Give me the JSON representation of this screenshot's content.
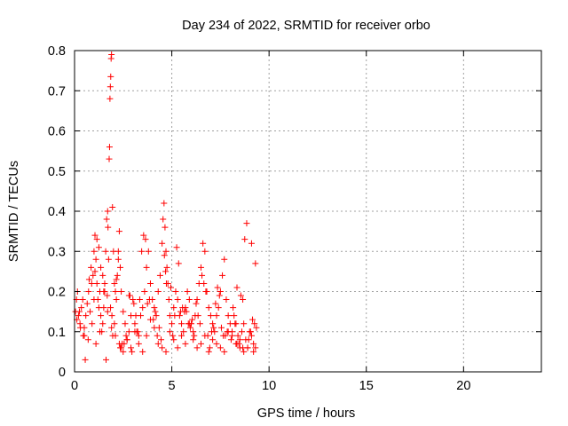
{
  "chart_data": {
    "type": "scatter",
    "title": "Day 234 of 2022, SRMTID for receiver orbo",
    "xlabel": "GPS time / hours",
    "ylabel": "SRMTID / TECUs",
    "xlim": [
      0,
      24
    ],
    "ylim": [
      0,
      0.8
    ],
    "xticks": [
      0,
      5,
      10,
      15,
      20
    ],
    "yticks": [
      0,
      0.1,
      0.2,
      0.3,
      0.4,
      0.5,
      0.6,
      0.7,
      0.8
    ],
    "xtick_labels": [
      "0",
      "5",
      "10",
      "15",
      "20"
    ],
    "ytick_labels": [
      "0",
      "0.1",
      "0.2",
      "0.3",
      "0.4",
      "0.5",
      "0.6",
      "0.7",
      "0.8"
    ],
    "grid": true,
    "marker": "+",
    "point_color": "#ff0000",
    "series": [
      {
        "name": "SRMTID",
        "x": [
          0.05,
          0.12,
          0.2,
          0.28,
          0.35,
          0.42,
          0.5,
          0.58,
          0.65,
          0.72,
          0.8,
          0.88,
          0.95,
          1.0,
          1.05,
          1.1,
          1.15,
          1.2,
          1.25,
          1.3,
          1.35,
          1.4,
          1.45,
          1.5,
          1.55,
          1.6,
          1.65,
          1.7,
          1.72,
          1.75,
          1.78,
          1.8,
          1.82,
          1.84,
          1.86,
          1.88,
          1.9,
          1.95,
          2.0,
          2.05,
          2.1,
          2.15,
          2.2,
          2.25,
          2.3,
          2.35,
          2.4,
          2.5,
          2.6,
          2.7,
          2.8,
          2.9,
          3.0,
          3.1,
          3.2,
          3.3,
          3.4,
          3.5,
          3.6,
          3.7,
          3.8,
          3.9,
          4.0,
          4.1,
          4.2,
          4.3,
          4.4,
          4.5,
          4.55,
          4.6,
          4.65,
          4.7,
          4.75,
          4.8,
          4.85,
          4.9,
          5.0,
          5.1,
          5.2,
          5.3,
          5.4,
          5.5,
          5.6,
          5.7,
          5.8,
          5.9,
          6.0,
          6.1,
          6.2,
          6.3,
          6.4,
          6.5,
          6.6,
          6.7,
          6.8,
          6.9,
          7.0,
          7.1,
          7.2,
          7.3,
          7.4,
          7.5,
          7.6,
          7.7,
          7.8,
          7.9,
          8.0,
          8.1,
          8.2,
          8.3,
          8.4,
          8.5,
          8.6,
          8.7,
          8.8,
          8.9,
          9.0,
          9.1,
          9.2,
          9.3,
          0.1,
          0.3,
          0.5,
          0.7,
          0.9,
          1.1,
          1.3,
          1.5,
          1.7,
          1.9,
          2.1,
          2.3,
          2.5,
          2.7,
          2.9,
          3.1,
          3.3,
          3.5,
          3.7,
          3.9,
          4.1,
          4.3,
          4.5,
          4.7,
          4.9,
          5.1,
          5.3,
          5.5,
          5.7,
          5.9,
          6.1,
          6.3,
          6.5,
          6.7,
          6.9,
          7.1,
          7.3,
          7.5,
          7.7,
          7.9,
          8.1,
          8.3,
          8.5,
          8.7,
          8.9,
          9.1,
          9.3,
          1.05,
          1.15,
          1.25,
          2.15,
          2.25,
          3.45,
          3.55,
          3.65,
          4.62,
          4.68,
          4.72,
          5.25,
          5.35,
          6.55,
          6.65,
          6.75,
          7.25,
          7.35,
          7.45,
          8.15,
          8.35,
          8.55,
          0.15,
          0.45,
          0.75,
          1.0,
          1.35,
          1.55,
          1.85,
          2.45,
          2.85,
          3.15,
          3.75,
          4.05,
          4.35,
          5.05,
          5.45,
          5.85,
          6.25,
          6.85,
          7.15,
          7.65,
          8.05,
          8.45,
          8.95,
          9.05,
          9.15,
          9.25,
          9.35,
          8.85,
          8.75,
          8.65,
          1.92,
          1.96,
          2.4,
          2.55,
          2.8,
          3.05,
          3.35,
          4.25,
          4.45,
          5.65,
          5.95,
          6.15,
          6.45,
          7.05,
          7.55,
          7.85,
          8.25,
          0.25,
          0.55,
          0.85,
          1.45,
          1.62,
          1.68,
          2.05,
          2.35,
          2.65,
          2.95,
          3.25,
          3.85,
          4.15,
          4.95,
          5.15,
          5.55,
          5.75,
          6.05,
          6.35,
          6.95,
          7.75,
          8.35,
          8.65,
          9.2
        ],
        "y": [
          0.15,
          0.13,
          0.14,
          0.12,
          0.16,
          0.18,
          0.11,
          0.14,
          0.17,
          0.2,
          0.15,
          0.22,
          0.24,
          0.3,
          0.34,
          0.28,
          0.22,
          0.18,
          0.16,
          0.2,
          0.14,
          0.1,
          0.12,
          0.16,
          0.2,
          0.3,
          0.38,
          0.4,
          0.36,
          0.28,
          0.53,
          0.56,
          0.68,
          0.71,
          0.735,
          0.78,
          0.79,
          0.41,
          0.3,
          0.22,
          0.2,
          0.18,
          0.24,
          0.3,
          0.35,
          0.26,
          0.2,
          0.15,
          0.12,
          0.08,
          0.1,
          0.14,
          0.18,
          0.12,
          0.1,
          0.09,
          0.14,
          0.16,
          0.2,
          0.26,
          0.3,
          0.22,
          0.18,
          0.16,
          0.14,
          0.2,
          0.24,
          0.32,
          0.38,
          0.42,
          0.36,
          0.3,
          0.26,
          0.22,
          0.18,
          0.14,
          0.12,
          0.16,
          0.2,
          0.18,
          0.14,
          0.12,
          0.1,
          0.16,
          0.2,
          0.18,
          0.12,
          0.1,
          0.14,
          0.18,
          0.22,
          0.26,
          0.32,
          0.3,
          0.2,
          0.16,
          0.14,
          0.12,
          0.1,
          0.14,
          0.16,
          0.2,
          0.24,
          0.28,
          0.18,
          0.14,
          0.12,
          0.1,
          0.14,
          0.12,
          0.09,
          0.08,
          0.1,
          0.12,
          0.08,
          0.06,
          0.1,
          0.09,
          0.07,
          0.06,
          0.18,
          0.11,
          0.09,
          0.08,
          0.12,
          0.07,
          0.1,
          0.2,
          0.15,
          0.11,
          0.09,
          0.07,
          0.05,
          0.08,
          0.06,
          0.1,
          0.07,
          0.05,
          0.09,
          0.13,
          0.11,
          0.07,
          0.06,
          0.05,
          0.1,
          0.08,
          0.06,
          0.09,
          0.07,
          0.12,
          0.08,
          0.06,
          0.07,
          0.09,
          0.05,
          0.08,
          0.07,
          0.06,
          0.05,
          0.1,
          0.09,
          0.07,
          0.06,
          0.05,
          0.06,
          0.32,
          0.27,
          0.25,
          0.33,
          0.31,
          0.23,
          0.28,
          0.3,
          0.34,
          0.33,
          0.29,
          0.25,
          0.22,
          0.31,
          0.27,
          0.24,
          0.22,
          0.2,
          0.17,
          0.21,
          0.19,
          0.16,
          0.21,
          0.19,
          0.2,
          0.09,
          0.23,
          0.18,
          0.26,
          0.22,
          0.16,
          0.07,
          0.19,
          0.14,
          0.17,
          0.13,
          0.11,
          0.09,
          0.15,
          0.12,
          0.17,
          0.09,
          0.11,
          0.09,
          0.08,
          0.07,
          0.08,
          0.1,
          0.13,
          0.12,
          0.11,
          0.37,
          0.33,
          0.18,
          0.14,
          0.09,
          0.06,
          0.07,
          0.19,
          0.17,
          0.18,
          0.09,
          0.08,
          0.15,
          0.11,
          0.09,
          0.12,
          0.1,
          0.11,
          0.1,
          0.12,
          0.15,
          0.03,
          0.26,
          0.24,
          0.03,
          0.19,
          0.12,
          0.06,
          0.09,
          0.05,
          0.1,
          0.18,
          0.15,
          0.21,
          0.14,
          0.16,
          0.15,
          0.13,
          0.14,
          0.06,
          0.09,
          0.07,
          0.06,
          0.05
        ]
      }
    ]
  }
}
